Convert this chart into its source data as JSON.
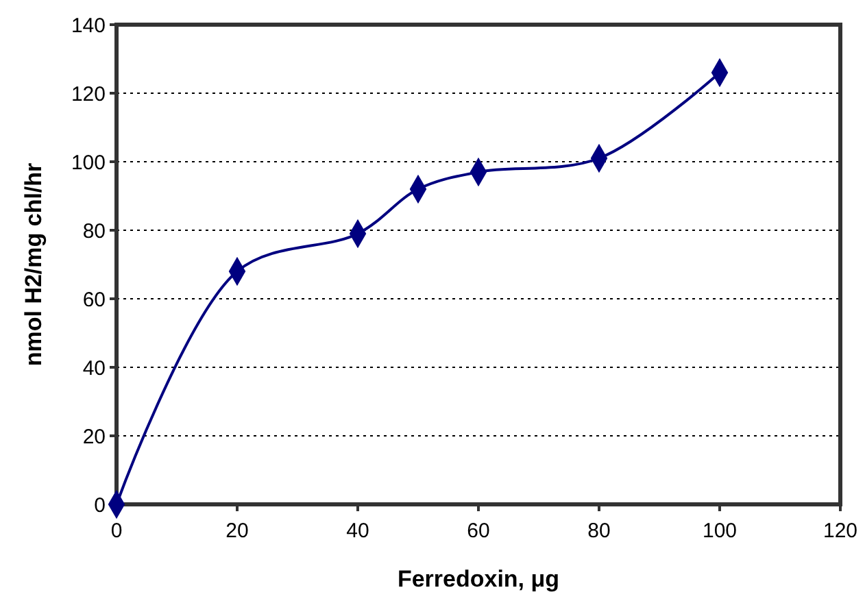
{
  "chart_data": {
    "type": "line",
    "xlabel": "Ferredoxin, μg",
    "ylabel": "nmol H2/mg chl/hr",
    "x": [
      0,
      20,
      40,
      50,
      60,
      80,
      100
    ],
    "series": [
      {
        "color": "#000080",
        "values": [
          0,
          68,
          79,
          92,
          97,
          101,
          126
        ]
      }
    ],
    "xlim": [
      0,
      120
    ],
    "xticks": [
      0,
      20,
      40,
      60,
      80,
      100,
      120
    ],
    "ylim": [
      0,
      140
    ],
    "yticks": [
      0,
      20,
      40,
      60,
      80,
      100,
      120,
      140
    ],
    "grid": "y",
    "marker": "diamond",
    "line_style": "solid"
  }
}
